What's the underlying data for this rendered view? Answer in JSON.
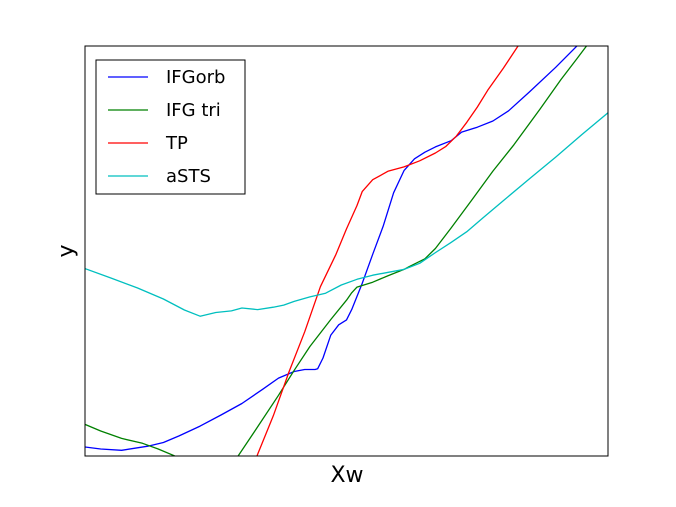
{
  "chart_data": {
    "type": "line",
    "xlabel": "Xw",
    "ylabel": "y",
    "xlim": [
      0,
      100
    ],
    "ylim": [
      0,
      100
    ],
    "grid": false,
    "legend_position": "top-left",
    "series": [
      {
        "name": "IFGorb",
        "color": "#0000ff",
        "points": [
          [
            0,
            2.2
          ],
          [
            3,
            1.7
          ],
          [
            7,
            1.4
          ],
          [
            12,
            2.4
          ],
          [
            15,
            3.3
          ],
          [
            18,
            4.9
          ],
          [
            22,
            7.3
          ],
          [
            26,
            10.0
          ],
          [
            30,
            12.8
          ],
          [
            34,
            16.3
          ],
          [
            37,
            19.0
          ],
          [
            40,
            20.6
          ],
          [
            42,
            21.1
          ],
          [
            44,
            21.1
          ],
          [
            44.5,
            21.3
          ],
          [
            45.5,
            23.9
          ],
          [
            47,
            29.5
          ],
          [
            48.5,
            32.0
          ],
          [
            50,
            33.2
          ],
          [
            51,
            35.7
          ],
          [
            53,
            42.1
          ],
          [
            55,
            49.2
          ],
          [
            57,
            56.0
          ],
          [
            59,
            64.2
          ],
          [
            61,
            69.6
          ],
          [
            63,
            72.5
          ],
          [
            65,
            74.1
          ],
          [
            67,
            75.4
          ],
          [
            70,
            76.9
          ],
          [
            72,
            79.0
          ],
          [
            75,
            80.2
          ],
          [
            78,
            81.7
          ],
          [
            81,
            84.2
          ],
          [
            85,
            88.8
          ],
          [
            90,
            94.8
          ],
          [
            95,
            101.2
          ],
          [
            100,
            107.7
          ]
        ]
      },
      {
        "name": "IFG tri",
        "color": "#008000",
        "points": [
          [
            0,
            7.7
          ],
          [
            3,
            6.1
          ],
          [
            7,
            4.3
          ],
          [
            11,
            3.1
          ],
          [
            14,
            1.7
          ],
          [
            17,
            0.1
          ],
          [
            18,
            -0.6
          ],
          [
            25,
            -8
          ],
          [
            29,
            -0.5
          ],
          [
            33,
            7.1
          ],
          [
            37,
            14.8
          ],
          [
            40,
            20.9
          ],
          [
            43,
            26.7
          ],
          [
            47,
            33.3
          ],
          [
            50,
            38.0
          ],
          [
            51,
            39.8
          ],
          [
            52,
            41.2
          ],
          [
            55,
            42.4
          ],
          [
            58,
            44.0
          ],
          [
            61,
            45.5
          ],
          [
            62,
            46.2
          ],
          [
            65,
            48.1
          ],
          [
            67,
            50.6
          ],
          [
            70,
            55.6
          ],
          [
            74,
            62.5
          ],
          [
            78,
            69.5
          ],
          [
            82,
            75.9
          ],
          [
            87,
            84.6
          ],
          [
            91,
            91.8
          ],
          [
            94,
            96.8
          ],
          [
            96,
            100.2
          ],
          [
            99,
            105.4
          ]
        ]
      },
      {
        "name": "TP",
        "color": "#ff0000",
        "points": [
          [
            30,
            -10
          ],
          [
            33,
            0.4
          ],
          [
            36,
            9.8
          ],
          [
            39,
            20.5
          ],
          [
            42,
            30.3
          ],
          [
            45,
            41.3
          ],
          [
            48,
            49.2
          ],
          [
            50,
            55.4
          ],
          [
            52,
            61.1
          ],
          [
            53,
            64.5
          ],
          [
            55,
            67.4
          ],
          [
            58,
            69.5
          ],
          [
            61,
            70.5
          ],
          [
            64,
            72.0
          ],
          [
            67,
            73.9
          ],
          [
            69,
            75.5
          ],
          [
            71,
            78.0
          ],
          [
            73,
            81.4
          ],
          [
            75,
            85.1
          ],
          [
            77,
            89.2
          ],
          [
            80,
            94.6
          ],
          [
            83,
            100.4
          ],
          [
            86,
            105.6
          ]
        ]
      },
      {
        "name": "aSTS",
        "color": "#00bfbf",
        "points": [
          [
            0,
            45.7
          ],
          [
            5,
            43.4
          ],
          [
            10,
            41.0
          ],
          [
            15,
            38.3
          ],
          [
            19,
            35.6
          ],
          [
            22,
            34.1
          ],
          [
            25,
            35.0
          ],
          [
            28,
            35.4
          ],
          [
            30,
            36.1
          ],
          [
            33,
            35.7
          ],
          [
            36,
            36.3
          ],
          [
            38,
            36.8
          ],
          [
            40,
            37.7
          ],
          [
            43,
            38.8
          ],
          [
            46,
            39.7
          ],
          [
            49,
            41.7
          ],
          [
            52,
            43.1
          ],
          [
            55,
            44.1
          ],
          [
            58,
            44.8
          ],
          [
            61,
            45.5
          ],
          [
            64,
            47.0
          ],
          [
            67,
            49.6
          ],
          [
            70,
            52.1
          ],
          [
            73,
            54.7
          ],
          [
            76,
            58.0
          ],
          [
            80,
            62.3
          ],
          [
            85,
            67.6
          ],
          [
            90,
            72.9
          ],
          [
            95,
            78.4
          ],
          [
            100,
            83.7
          ]
        ]
      }
    ]
  }
}
